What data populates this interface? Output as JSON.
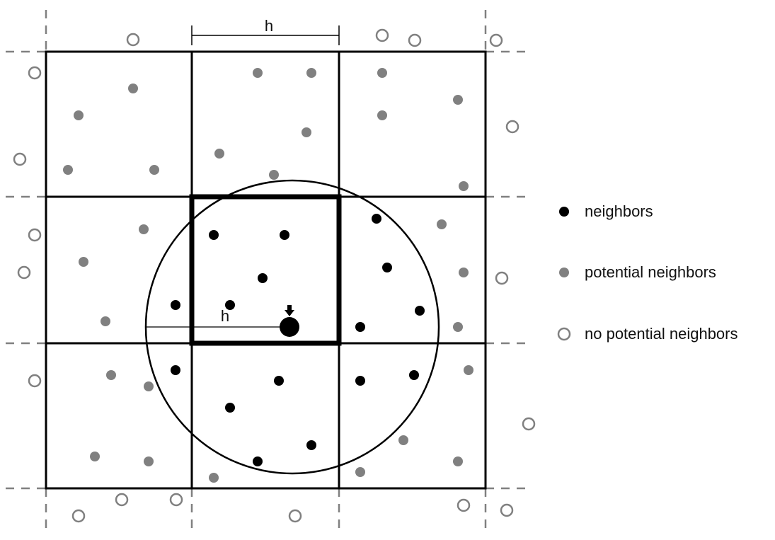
{
  "diagram": {
    "colors": {
      "neighbor": "#000000",
      "potential": "#808080",
      "none_stroke": "#808080",
      "grid": "#000000",
      "dashed": "#808080"
    },
    "dimension_label_top": "h",
    "radius_label": "h",
    "legend": {
      "neighbors_label": "neighbors",
      "potential_label": "potential neighbors",
      "none_label": "no potential neighbors"
    }
  }
}
